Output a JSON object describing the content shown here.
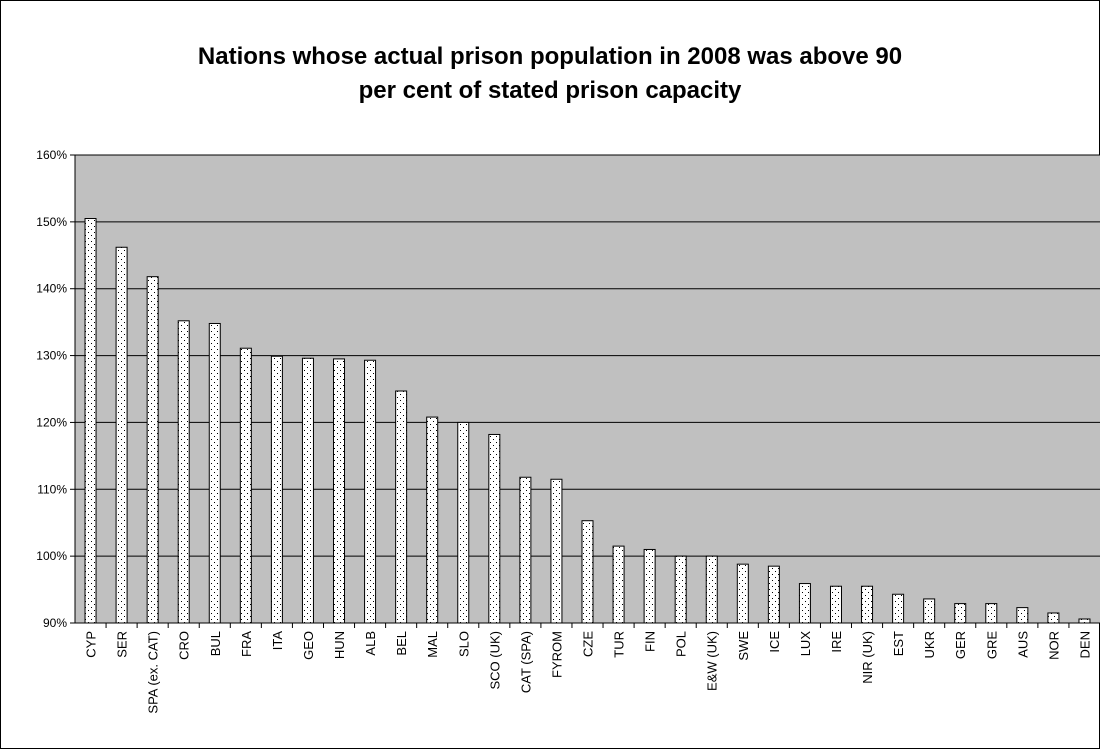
{
  "chart_data": {
    "type": "bar",
    "title": "Nations whose actual prison population in 2008 was above 90 per cent of stated prison capacity",
    "xlabel": "",
    "ylabel": "",
    "ylim": [
      90,
      160
    ],
    "ytick_values": [
      90,
      100,
      110,
      120,
      130,
      140,
      150,
      160
    ],
    "ytick_labels": [
      "90%",
      "100%",
      "110%",
      "120%",
      "130%",
      "140%",
      "150%",
      "160%"
    ],
    "grid": true,
    "legend": "none",
    "categories": [
      "CYP",
      "SER",
      "SPA (ex. CAT)",
      "CRO",
      "BUL",
      "FRA",
      "ITA",
      "GEO",
      "HUN",
      "ALB",
      "BEL",
      "MAL",
      "SLO",
      "SCO (UK)",
      "CAT (SPA)",
      "FYROM",
      "CZE",
      "TUR",
      "FIN",
      "POL",
      "E&W (UK)",
      "SWE",
      "ICE",
      "LUX",
      "IRE",
      "NIR (UK)",
      "EST",
      "UKR",
      "GER",
      "GRE",
      "AUS",
      "NOR",
      "DEN"
    ],
    "values": [
      150.5,
      146.2,
      141.8,
      135.2,
      134.8,
      131.1,
      129.9,
      129.6,
      129.5,
      129.3,
      124.7,
      120.8,
      120.0,
      118.2,
      111.8,
      111.5,
      105.3,
      101.5,
      101.0,
      100.0,
      100.0,
      98.8,
      98.5,
      95.9,
      95.5,
      95.5,
      94.3,
      93.6,
      92.9,
      92.9,
      92.3,
      91.5,
      90.6
    ]
  },
  "colors": {
    "plot_background": "#c0c0c0",
    "bar_fill": "#ffffff",
    "bar_dots": "#000000",
    "gridline": "#000000"
  }
}
